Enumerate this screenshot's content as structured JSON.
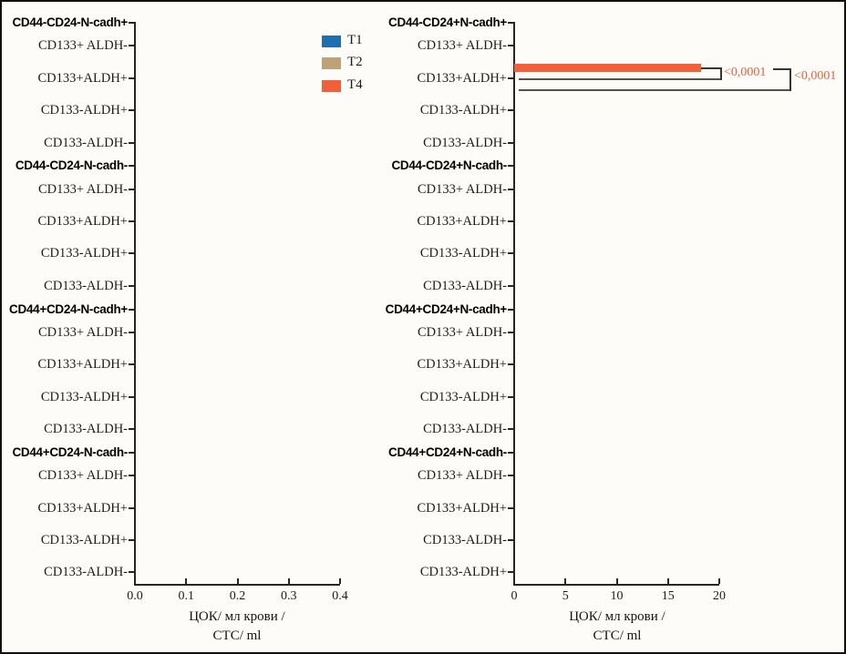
{
  "legend": {
    "items": [
      {
        "label": "T1",
        "color": "#1f6eb3"
      },
      {
        "label": "T2",
        "color": "#bda277"
      },
      {
        "label": "T4",
        "color": "#f1603a"
      }
    ]
  },
  "chart_data": [
    {
      "panel": "left",
      "type": "bar",
      "orientation": "horizontal",
      "title": "",
      "xlabel": [
        "ЦОК/ мл крови /",
        "CTC/ ml"
      ],
      "xlim": [
        0,
        0.4
      ],
      "xticks": [
        "0.0",
        "0.1",
        "0.2",
        "0.3",
        "0.4"
      ],
      "series": [
        "T1",
        "T2",
        "T4"
      ],
      "groups": [
        {
          "header": "CD44-CD24-N-cadh+",
          "rows": [
            "CD133+ ALDH-",
            "CD133+ALDH+",
            "CD133-ALDH+",
            "CD133-ALDH-"
          ]
        },
        {
          "header": "CD44-CD24-N-cadh-",
          "rows": [
            "CD133+ ALDH-",
            "CD133+ALDH+",
            "CD133-ALDH+",
            "CD133-ALDH-"
          ]
        },
        {
          "header": "CD44+CD24-N-cadh+",
          "rows": [
            "CD133+ ALDH-",
            "CD133+ALDH+",
            "CD133-ALDH+",
            "CD133-ALDH-"
          ]
        },
        {
          "header": "CD44+CD24-N-cadh-",
          "rows": [
            "CD133+ ALDH-",
            "CD133+ALDH+",
            "CD133-ALDH+",
            "CD133-ALDH-"
          ]
        }
      ],
      "bars": [],
      "note": "no visible bars in this panel; all plotted values are approximately 0"
    },
    {
      "panel": "right",
      "type": "bar",
      "orientation": "horizontal",
      "title": "",
      "xlabel": [
        "ЦОК/ мл крови /",
        "CTC/ ml"
      ],
      "xlim": [
        0,
        20
      ],
      "xticks": [
        "0",
        "5",
        "10",
        "15",
        "20"
      ],
      "series": [
        "T1",
        "T2",
        "T4"
      ],
      "groups": [
        {
          "header": "CD44-CD24+N-cadh+",
          "rows": [
            "CD133+ ALDH-",
            "CD133+ALDH+",
            "CD133-ALDH+",
            "CD133-ALDH-"
          ]
        },
        {
          "header": "CD44-CD24+N-cadh-",
          "rows": [
            "CD133+ ALDH-",
            "CD133+ALDH+",
            "CD133-ALDH+",
            "CD133-ALDH-"
          ]
        },
        {
          "header": "CD44+CD24+N-cadh+",
          "rows": [
            "CD133+ ALDH-",
            "CD133+ALDH+",
            "CD133-ALDH+",
            "CD133-ALDH-"
          ]
        },
        {
          "header": "CD44+CD24+N-cadh-",
          "rows": [
            "CD133+ ALDH-",
            "CD133+ALDH+",
            "CD133-ALDH-",
            "CD133-ALDH+"
          ]
        }
      ],
      "bars": [
        {
          "group": "CD44-CD24+N-cadh+",
          "row": "CD133+ALDH+",
          "series": "T4",
          "value": 18.2
        }
      ],
      "annotations": [
        {
          "text": "<0,0001",
          "comparison": "T4 vs T2"
        },
        {
          "text": "<0,0001",
          "comparison": "T4 vs T1"
        }
      ],
      "note": "all other plotted values are approximately 0"
    }
  ]
}
